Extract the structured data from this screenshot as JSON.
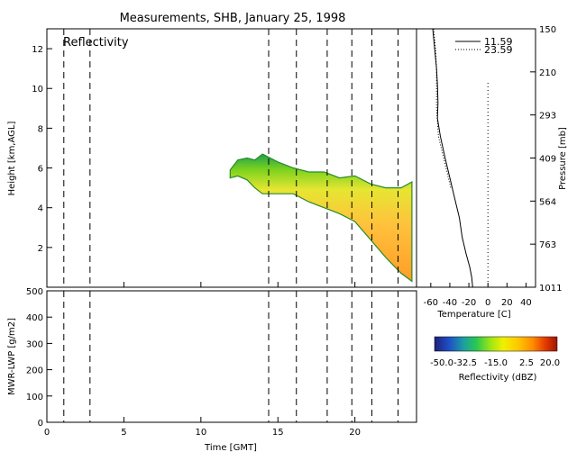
{
  "chart_data": [
    {
      "type": "heatmap",
      "title": "Measurements, SHB, January 25, 1998",
      "panel_label": "Reflectivity",
      "xlabel": "Time [GMT]",
      "ylabel": "Height [km,AGL]",
      "xlim": [
        0,
        24
      ],
      "ylim": [
        0,
        13
      ],
      "x_ticks": [
        "0",
        "5",
        "10",
        "15",
        "20"
      ],
      "y_ticks": [
        "2",
        "4",
        "6",
        "8",
        "10",
        "12"
      ],
      "dashed_lines_time": [
        1.1,
        2.8,
        14.4,
        16.2,
        18.2,
        19.8,
        21.1,
        22.8
      ],
      "echo_top_km": [
        [
          11.9,
          5.9
        ],
        [
          12.4,
          6.4
        ],
        [
          13.0,
          6.5
        ],
        [
          13.5,
          6.4
        ],
        [
          14.0,
          6.7
        ],
        [
          15.0,
          6.3
        ],
        [
          16.0,
          6.0
        ],
        [
          17.0,
          5.8
        ],
        [
          18.0,
          5.8
        ],
        [
          19.0,
          5.5
        ],
        [
          20.0,
          5.6
        ],
        [
          21.0,
          5.2
        ],
        [
          22.0,
          5.0
        ],
        [
          23.0,
          5.0
        ],
        [
          23.7,
          5.3
        ]
      ],
      "echo_base_km": [
        [
          11.9,
          5.5
        ],
        [
          12.4,
          5.6
        ],
        [
          13.0,
          5.4
        ],
        [
          13.5,
          5.0
        ],
        [
          14.0,
          4.7
        ],
        [
          15.0,
          4.7
        ],
        [
          16.0,
          4.7
        ],
        [
          17.0,
          4.3
        ],
        [
          18.0,
          4.0
        ],
        [
          19.0,
          3.7
        ],
        [
          20.0,
          3.3
        ],
        [
          21.0,
          2.4
        ],
        [
          22.0,
          1.5
        ],
        [
          23.0,
          0.7
        ],
        [
          23.7,
          0.3
        ]
      ],
      "colorbar": {
        "label": "Reflectivity (dBZ)",
        "ticks": [
          "-50.0",
          "-32.5",
          "-15.0",
          "2.5",
          "20.0"
        ],
        "range": [
          -50,
          20
        ]
      }
    },
    {
      "type": "line",
      "xlabel": "Temperature [C]",
      "right_label": "Pressure [mb]",
      "x_ticks": [
        "-60",
        "-40",
        "-20",
        "0",
        "20",
        "40"
      ],
      "xlim": [
        -75,
        50
      ],
      "pressure_ticks": [
        "150",
        "210",
        "293",
        "409",
        "564",
        "763",
        "1011"
      ],
      "zero_line_temp": 0,
      "legend": [
        "11.59",
        "23.59"
      ],
      "legend_position": "top-right",
      "series": [
        {
          "name": "11.59",
          "style": "solid",
          "points": [
            [
              -58,
              13
            ],
            [
              -56,
              12
            ],
            [
              -54,
              11
            ],
            [
              -53,
              10.2
            ],
            [
              -52.5,
              9.3
            ],
            [
              -53,
              8.5
            ],
            [
              -50,
              7.6
            ],
            [
              -45,
              6.5
            ],
            [
              -40,
              5.5
            ],
            [
              -35,
              4.5
            ],
            [
              -30,
              3.5
            ],
            [
              -27,
              2.5
            ],
            [
              -23,
              1.7
            ],
            [
              -19,
              1.0
            ],
            [
              -17,
              0.5
            ],
            [
              -16,
              0
            ]
          ]
        },
        {
          "name": "23.59",
          "style": "dotted",
          "points": [
            [
              -57,
              13
            ],
            [
              -55,
              12
            ],
            [
              -54,
              11
            ],
            [
              -54,
              10
            ],
            [
              -54,
              9
            ],
            [
              -52,
              7.6
            ],
            [
              -48,
              6.8
            ],
            [
              -43,
              5.8
            ],
            [
              -39,
              5.0
            ]
          ]
        }
      ]
    },
    {
      "type": "line",
      "ylabel": "MWR-LWP [g/m2]",
      "xlim": [
        0,
        24
      ],
      "ylim": [
        0,
        500
      ],
      "y_ticks": [
        "0",
        "100",
        "200",
        "300",
        "400",
        "500"
      ],
      "series": []
    }
  ]
}
